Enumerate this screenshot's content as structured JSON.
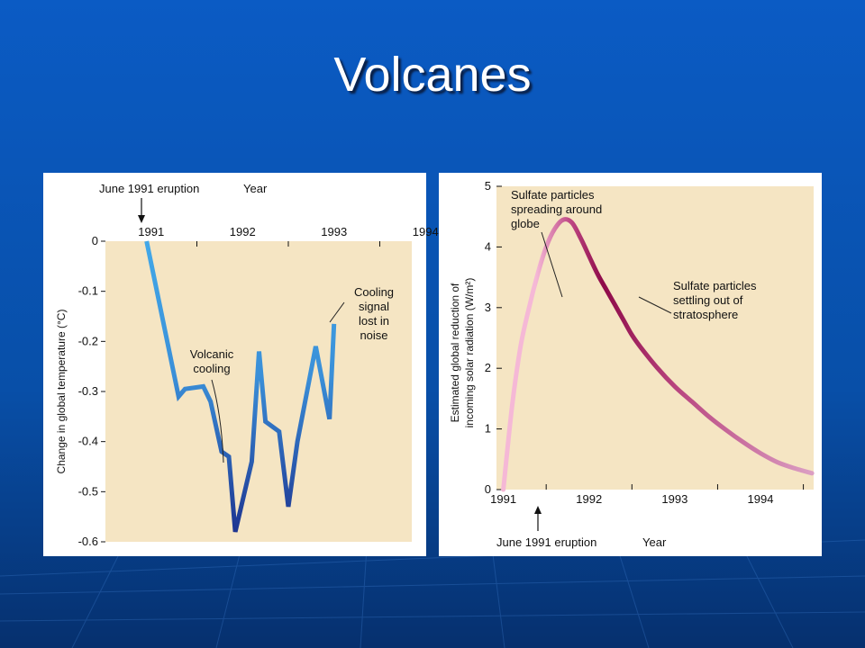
{
  "slide": {
    "title": "Volcanes"
  },
  "chart_data": [
    {
      "type": "line",
      "title": "",
      "xlabel": "Year",
      "ylabel": "Change in global temperature (°C)",
      "x_ticks": [
        "1991",
        "1992",
        "1993",
        "1994"
      ],
      "y_ticks": [
        "0",
        "-0.1",
        "-0.2",
        "-0.3",
        "-0.4",
        "-0.5",
        "-0.6"
      ],
      "ylim": [
        -0.6,
        0
      ],
      "xlim": [
        1991.0,
        1994.35
      ],
      "x": [
        1991.45,
        1991.8,
        1991.87,
        1992.07,
        1992.15,
        1992.27,
        1992.35,
        1992.42,
        1992.6,
        1992.68,
        1992.75,
        1992.9,
        1993.0,
        1993.1,
        1993.3,
        1993.45,
        1993.5
      ],
      "y": [
        0.0,
        -0.31,
        -0.295,
        -0.29,
        -0.32,
        -0.42,
        -0.43,
        -0.58,
        -0.44,
        -0.22,
        -0.36,
        -0.38,
        -0.53,
        -0.4,
        -0.21,
        -0.355,
        -0.165
      ],
      "annotations": {
        "eruption": "June 1991 eruption",
        "cooling": [
          "Volcanic",
          "cooling"
        ],
        "signal": [
          "Cooling",
          "signal",
          "lost in",
          "noise"
        ]
      },
      "colors": {
        "light": "#42a8e8",
        "dark": "#1c2f8c",
        "plot_bg": "#f5e5c3"
      }
    },
    {
      "type": "line",
      "title": "",
      "xlabel": "Year",
      "ylabel": [
        "Estimated global reduction of",
        "incoming solar radiation (W/m²)"
      ],
      "x_ticks": [
        "1991",
        "1992",
        "1993",
        "1994"
      ],
      "y_ticks": [
        "0",
        "1",
        "2",
        "3",
        "4",
        "5"
      ],
      "ylim": [
        0,
        5
      ],
      "xlim": [
        1990.92,
        1994.62
      ],
      "x": [
        1991.0,
        1991.1,
        1991.2,
        1991.3,
        1991.4,
        1991.5,
        1991.6,
        1991.7,
        1991.8,
        1991.9,
        1992.0,
        1992.1,
        1992.2,
        1992.3,
        1992.4,
        1992.5,
        1992.6,
        1992.8,
        1993.0,
        1993.2,
        1993.4,
        1993.6,
        1993.8,
        1994.0,
        1994.2,
        1994.4,
        1994.6
      ],
      "y": [
        0.0,
        1.35,
        2.35,
        3.0,
        3.55,
        4.0,
        4.3,
        4.45,
        4.4,
        4.15,
        3.85,
        3.55,
        3.3,
        3.05,
        2.8,
        2.55,
        2.35,
        2.0,
        1.7,
        1.45,
        1.2,
        0.98,
        0.78,
        0.6,
        0.45,
        0.35,
        0.27
      ],
      "annotations": {
        "eruption": "June 1991 eruption",
        "spreading": [
          "Sulfate particles",
          "spreading around",
          "globe"
        ],
        "settling": [
          "Sulfate particles",
          "settling out of",
          "stratosphere"
        ]
      },
      "colors": {
        "start": "#f5b8d6",
        "peak": "#8e0a48",
        "end": "#dca0c4",
        "plot_bg": "#f5e5c3"
      }
    }
  ]
}
